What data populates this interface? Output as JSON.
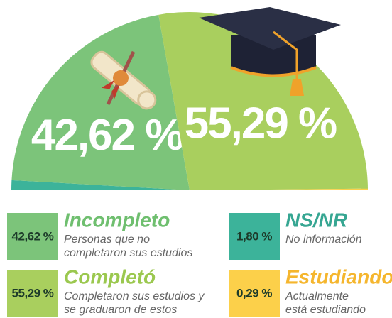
{
  "chart_data": {
    "type": "pie",
    "categories": [
      "NS/NR",
      "Incompleto",
      "Completó",
      "Estudiando"
    ],
    "values": [
      1.8,
      42.62,
      55.29,
      0.29
    ],
    "value_labels": [
      "1,80 %",
      "42,62 %",
      "55,29 %",
      "0,29 %"
    ],
    "colors": [
      "#3cb39a",
      "#7cc47a",
      "#a9cf5e",
      "#fcd04a"
    ],
    "title_colors": [
      "#36a692",
      "#6fbf6f",
      "#9bc84f",
      "#f5b62e"
    ],
    "descriptions": [
      [
        "No información"
      ],
      [
        "Personas que no",
        "completaron sus estudios"
      ],
      [
        "Completaron sus estudios y",
        "se graduaron de estos"
      ],
      [
        "Actualmente",
        "está estudiando"
      ]
    ]
  }
}
